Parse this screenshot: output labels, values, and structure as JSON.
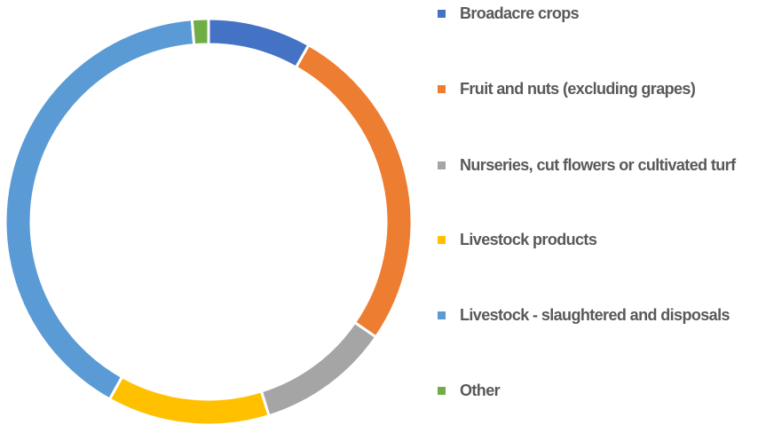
{
  "chart_data": {
    "type": "donut",
    "categories": [
      "Broadacre crops",
      "Fruit and nuts (excluding grapes)",
      "Nurseries, cut flowers or cultivated turf",
      "Livestock products",
      "Livestock - slaughtered and disposals",
      "Other"
    ],
    "values": [
      8.2,
      26.4,
      10.6,
      12.9,
      40.6,
      1.3
    ],
    "colors": [
      "#4472c4",
      "#ed7d31",
      "#a5a5a5",
      "#ffc000",
      "#5b9bd5",
      "#70ad47"
    ],
    "legend": "right"
  }
}
